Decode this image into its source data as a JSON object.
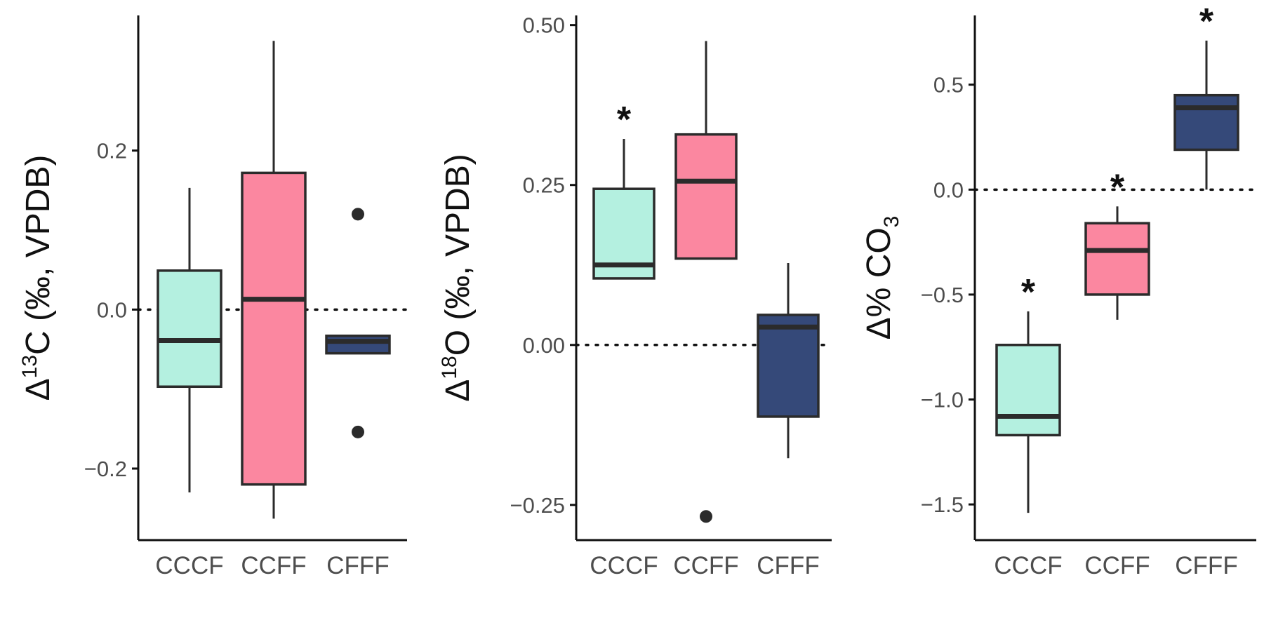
{
  "colors": {
    "CCCF": "#b4f0e0",
    "CCFF": "#fb87a0",
    "CFFF": "#354979",
    "line": "#2b2b2b"
  },
  "chart_data": [
    {
      "type": "box",
      "ylabel": {
        "pre": "Δ",
        "sup": "13",
        "post": "C (‰, VPDB)"
      },
      "categories": [
        "CCCF",
        "CCFF",
        "CFFF"
      ],
      "ylim": [
        -0.29,
        0.37
      ],
      "yticks": [
        -0.2,
        0.0,
        0.2
      ],
      "ytick_labels": [
        "−0.2",
        "0.0",
        "0.2"
      ],
      "reference_line": 0,
      "boxes": [
        {
          "category": "CCCF",
          "whisker_low": -0.23,
          "q1": -0.097,
          "median": -0.039,
          "q3": 0.049,
          "whisker_high": 0.153,
          "outliers": [],
          "significant": false
        },
        {
          "category": "CCFF",
          "whisker_low": -0.263,
          "q1": -0.22,
          "median": 0.013,
          "q3": 0.172,
          "whisker_high": 0.338,
          "outliers": [],
          "significant": false
        },
        {
          "category": "CFFF",
          "whisker_low": -0.055,
          "q1": -0.055,
          "median": -0.04,
          "q3": -0.033,
          "whisker_high": -0.033,
          "outliers": [
            0.12,
            -0.154
          ],
          "significant": false
        }
      ]
    },
    {
      "type": "box",
      "ylabel": {
        "pre": "Δ",
        "sup": "18",
        "post": "O (‰, VPDB)"
      },
      "categories": [
        "CCCF",
        "CCFF",
        "CFFF"
      ],
      "ylim": [
        -0.305,
        0.515
      ],
      "yticks": [
        -0.25,
        0.0,
        0.25,
        0.5
      ],
      "ytick_labels": [
        "−0.25",
        "0.00",
        "0.25",
        "0.50"
      ],
      "reference_line": 0,
      "boxes": [
        {
          "category": "CCCF",
          "whisker_low": 0.104,
          "q1": 0.104,
          "median": 0.125,
          "q3": 0.244,
          "whisker_high": 0.322,
          "outliers": [],
          "significant": true
        },
        {
          "category": "CCFF",
          "whisker_low": 0.135,
          "q1": 0.135,
          "median": 0.256,
          "q3": 0.329,
          "whisker_high": 0.475,
          "outliers": [
            -0.268
          ],
          "significant": false
        },
        {
          "category": "CFFF",
          "whisker_low": -0.177,
          "q1": -0.112,
          "median": 0.028,
          "q3": 0.047,
          "whisker_high": 0.128,
          "outliers": [],
          "significant": false
        }
      ]
    },
    {
      "type": "box",
      "ylabel": {
        "pre": "Δ% CO",
        "sub": "3",
        "post": ""
      },
      "categories": [
        "CCCF",
        "CCFF",
        "CFFF"
      ],
      "ylim": [
        -1.67,
        0.83
      ],
      "yticks": [
        -1.5,
        -1.0,
        -0.5,
        0.0,
        0.5
      ],
      "ytick_labels": [
        "−1.5",
        "−1.0",
        "−0.5",
        "0.0",
        "0.5"
      ],
      "reference_line": 0,
      "boxes": [
        {
          "category": "CCCF",
          "whisker_low": -1.54,
          "q1": -1.17,
          "median": -1.08,
          "q3": -0.74,
          "whisker_high": -0.58,
          "outliers": [],
          "significant": true
        },
        {
          "category": "CCFF",
          "whisker_low": -0.62,
          "q1": -0.5,
          "median": -0.29,
          "q3": -0.16,
          "whisker_high": -0.08,
          "outliers": [],
          "significant": true
        },
        {
          "category": "CFFF",
          "whisker_low": 0.0,
          "q1": 0.19,
          "median": 0.39,
          "q3": 0.45,
          "whisker_high": 0.71,
          "outliers": [],
          "significant": true
        }
      ]
    }
  ]
}
